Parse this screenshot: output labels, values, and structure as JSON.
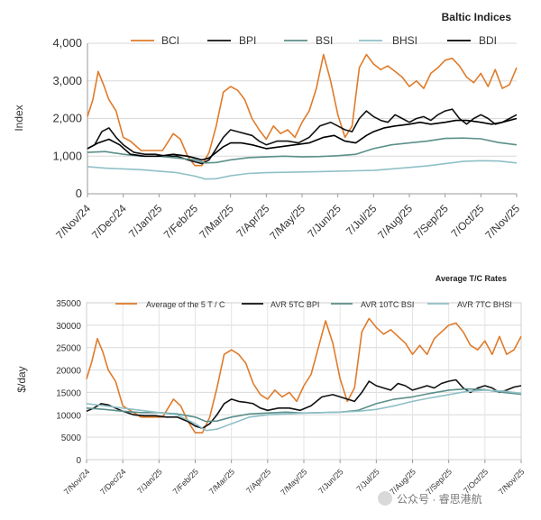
{
  "watermark": {
    "text": "公众号 · 睿思港航"
  },
  "chart_data": [
    {
      "type": "line",
      "title": "Baltic Indices",
      "xlabel": "",
      "ylabel": "Index",
      "ylim": [
        0,
        4000
      ],
      "yticks": [
        0,
        1000,
        2000,
        3000,
        4000
      ],
      "ytick_labels": [
        "0",
        "1,000",
        "2,000",
        "3,000",
        "4,000"
      ],
      "x_tick_labels": [
        "7/Nov/24",
        "7/Dec/24",
        "7/Jan/25",
        "7/Feb/25",
        "7/Mar/25",
        "7/Apr/25",
        "7/May/25",
        "7/Jun/25",
        "7/Jul/25",
        "7/Aug/25",
        "7/Sep/25",
        "7/Oct/25",
        "7/Nov/25"
      ],
      "legend_position": "top",
      "grid": true,
      "series": [
        {
          "name": "BCI",
          "color": "#e07b2a",
          "t": [
            0,
            0.15,
            0.3,
            0.45,
            0.6,
            0.8,
            1.0,
            1.2,
            1.5,
            1.8,
            2.1,
            2.4,
            2.6,
            2.8,
            3.0,
            3.2,
            3.4,
            3.6,
            3.8,
            4.0,
            4.2,
            4.4,
            4.6,
            4.8,
            5.0,
            5.2,
            5.4,
            5.6,
            5.8,
            6.0,
            6.2,
            6.4,
            6.6,
            6.8,
            7.0,
            7.2,
            7.4,
            7.6,
            7.8,
            8.0,
            8.2,
            8.4,
            8.6,
            8.8,
            9.0,
            9.2,
            9.4,
            9.6,
            9.8,
            10.0,
            10.2,
            10.4,
            10.6,
            10.8,
            11.0,
            11.2,
            11.4,
            11.6,
            11.8,
            12.0
          ],
          "values": [
            2050,
            2500,
            3250,
            2900,
            2500,
            2200,
            1500,
            1400,
            1150,
            1150,
            1150,
            1600,
            1450,
            1000,
            750,
            750,
            1100,
            1800,
            2700,
            2850,
            2750,
            2500,
            2000,
            1700,
            1450,
            1800,
            1600,
            1700,
            1500,
            1900,
            2200,
            2800,
            3700,
            3000,
            2100,
            1500,
            1800,
            3350,
            3700,
            3450,
            3300,
            3400,
            3250,
            3100,
            2850,
            3000,
            2800,
            3200,
            3350,
            3550,
            3600,
            3400,
            3100,
            2950,
            3200,
            2850,
            3300,
            2800,
            2900,
            3350
          ]
        },
        {
          "name": "BPI",
          "color": "#111111",
          "t": [
            0,
            0.2,
            0.4,
            0.6,
            0.8,
            1.0,
            1.3,
            1.6,
            1.9,
            2.2,
            2.5,
            2.8,
            3.0,
            3.2,
            3.4,
            3.6,
            3.8,
            4.0,
            4.2,
            4.4,
            4.6,
            4.8,
            5.0,
            5.3,
            5.6,
            5.9,
            6.2,
            6.5,
            6.8,
            7.0,
            7.2,
            7.4,
            7.6,
            7.8,
            8.0,
            8.2,
            8.4,
            8.6,
            8.8,
            9.0,
            9.2,
            9.4,
            9.6,
            9.8,
            10.0,
            10.2,
            10.4,
            10.6,
            10.8,
            11.0,
            11.2,
            11.4,
            11.6,
            11.8,
            12.0
          ],
          "values": [
            1200,
            1300,
            1650,
            1750,
            1500,
            1300,
            1100,
            1050,
            1050,
            1000,
            1000,
            900,
            850,
            800,
            900,
            1200,
            1500,
            1700,
            1650,
            1600,
            1550,
            1400,
            1300,
            1400,
            1400,
            1350,
            1500,
            1800,
            1900,
            1800,
            1700,
            1650,
            2000,
            2200,
            2050,
            1950,
            1900,
            2100,
            2000,
            1900,
            2000,
            2050,
            1950,
            2100,
            2200,
            2250,
            2000,
            1850,
            2000,
            2100,
            2000,
            1850,
            1900,
            2000,
            2100
          ]
        },
        {
          "name": "BSI",
          "color": "#5b8f8a",
          "t": [
            0,
            0.5,
            1,
            1.5,
            2,
            2.5,
            3,
            3.3,
            3.6,
            4,
            4.5,
            5,
            5.5,
            6,
            6.5,
            7,
            7.5,
            8,
            8.5,
            9,
            9.5,
            10,
            10.5,
            11,
            11.5,
            12
          ],
          "values": [
            1100,
            1120,
            1050,
            1000,
            1000,
            950,
            900,
            820,
            830,
            900,
            960,
            980,
            1000,
            980,
            990,
            1010,
            1050,
            1200,
            1300,
            1350,
            1400,
            1470,
            1480,
            1460,
            1360,
            1300
          ]
        },
        {
          "name": "BHSI",
          "color": "#8fc0c7",
          "t": [
            0,
            0.5,
            1,
            1.5,
            2,
            2.5,
            3,
            3.3,
            3.6,
            4,
            4.5,
            5,
            5.5,
            6,
            6.5,
            7,
            7.5,
            8,
            8.5,
            9,
            9.5,
            10,
            10.5,
            11,
            11.5,
            12
          ],
          "values": [
            720,
            680,
            660,
            640,
            600,
            560,
            470,
            390,
            400,
            480,
            540,
            560,
            570,
            580,
            590,
            600,
            610,
            620,
            660,
            700,
            740,
            800,
            860,
            880,
            870,
            820
          ]
        },
        {
          "name": "BDI",
          "color": "#000000",
          "t": [
            0,
            0.3,
            0.6,
            0.9,
            1.2,
            1.6,
            2.0,
            2.4,
            2.8,
            3.0,
            3.2,
            3.4,
            3.6,
            3.8,
            4.0,
            4.3,
            4.6,
            5.0,
            5.4,
            5.8,
            6.2,
            6.6,
            6.9,
            7.2,
            7.5,
            7.8,
            8.0,
            8.3,
            8.6,
            9.0,
            9.3,
            9.6,
            10.0,
            10.3,
            10.6,
            11.0,
            11.3,
            11.6,
            12.0
          ],
          "values": [
            1200,
            1350,
            1450,
            1300,
            1050,
            1000,
            1000,
            1050,
            1000,
            950,
            900,
            950,
            1100,
            1250,
            1350,
            1350,
            1300,
            1200,
            1250,
            1300,
            1350,
            1500,
            1550,
            1400,
            1350,
            1550,
            1650,
            1750,
            1800,
            1850,
            1900,
            1850,
            1900,
            1950,
            1950,
            1900,
            1850,
            1900,
            2000
          ]
        }
      ]
    },
    {
      "type": "line",
      "title": "Average T/C Rates",
      "xlabel": "",
      "ylabel": "$/day",
      "ylim": [
        0,
        35000
      ],
      "yticks": [
        0,
        5000,
        10000,
        15000,
        20000,
        25000,
        30000,
        35000
      ],
      "ytick_labels": [
        "0",
        "5000",
        "10000",
        "15000",
        "20000",
        "25000",
        "30000",
        "35000"
      ],
      "x_tick_labels": [
        "7/Nov/24",
        "7/Dec/24",
        "7/Jan/25",
        "7/Feb/25",
        "7/Mar/25",
        "7/Apr/25",
        "7/May/25",
        "7/Jun/25",
        "7/Jul/25",
        "7/Aug/25",
        "7/Sep/25",
        "7/Oct/25",
        "7/Nov/25"
      ],
      "legend_position": "top",
      "grid": true,
      "series": [
        {
          "name": "Average of the 5 T / C",
          "color": "#e07b2a",
          "t": [
            0,
            0.15,
            0.3,
            0.45,
            0.6,
            0.8,
            1.0,
            1.2,
            1.5,
            1.8,
            2.1,
            2.4,
            2.6,
            2.8,
            3.0,
            3.2,
            3.4,
            3.6,
            3.8,
            4.0,
            4.2,
            4.4,
            4.6,
            4.8,
            5.0,
            5.2,
            5.4,
            5.6,
            5.8,
            6.0,
            6.2,
            6.4,
            6.6,
            6.8,
            7.0,
            7.2,
            7.4,
            7.6,
            7.8,
            8.0,
            8.2,
            8.4,
            8.6,
            8.8,
            9.0,
            9.2,
            9.4,
            9.6,
            9.8,
            10.0,
            10.2,
            10.4,
            10.6,
            10.8,
            11.0,
            11.2,
            11.4,
            11.6,
            11.8,
            12.0
          ],
          "values": [
            18000,
            22000,
            27000,
            24000,
            20000,
            17500,
            12000,
            11000,
            9500,
            9500,
            9500,
            13500,
            12000,
            8500,
            6000,
            6000,
            9500,
            16000,
            23500,
            24500,
            23500,
            21500,
            17000,
            14500,
            13500,
            15500,
            14000,
            15000,
            13000,
            16500,
            19000,
            25000,
            31000,
            26000,
            18000,
            13000,
            16000,
            28500,
            31500,
            29500,
            28000,
            29000,
            27500,
            26000,
            23500,
            25500,
            23500,
            27000,
            28500,
            30000,
            30500,
            28500,
            25500,
            24500,
            26500,
            23500,
            27500,
            23500,
            24500,
            27500
          ]
        },
        {
          "name": "AVR 5TC BPI",
          "color": "#111111",
          "t": [
            0,
            0.2,
            0.4,
            0.6,
            0.8,
            1.0,
            1.3,
            1.6,
            1.9,
            2.2,
            2.5,
            2.8,
            3.0,
            3.2,
            3.4,
            3.6,
            3.8,
            4.0,
            4.2,
            4.4,
            4.6,
            4.8,
            5.0,
            5.3,
            5.6,
            5.9,
            6.2,
            6.5,
            6.8,
            7.0,
            7.2,
            7.4,
            7.6,
            7.8,
            8.0,
            8.2,
            8.4,
            8.6,
            8.8,
            9.0,
            9.2,
            9.4,
            9.6,
            9.8,
            10.0,
            10.2,
            10.4,
            10.6,
            10.8,
            11.0,
            11.2,
            11.4,
            11.6,
            11.8,
            12.0
          ],
          "values": [
            10800,
            11500,
            12500,
            12200,
            11500,
            10800,
            10000,
            9800,
            9800,
            9500,
            9500,
            8500,
            7500,
            7000,
            8000,
            10000,
            12500,
            13500,
            13000,
            12800,
            12500,
            11500,
            11000,
            11500,
            11500,
            11000,
            12000,
            14000,
            14500,
            14000,
            13500,
            13000,
            15000,
            17500,
            16500,
            16000,
            15500,
            17000,
            16500,
            15500,
            16000,
            16500,
            16000,
            17000,
            17500,
            17800,
            16000,
            15000,
            16000,
            16500,
            16000,
            15000,
            15500,
            16200,
            16500
          ]
        },
        {
          "name": "AVR 10TC BSI",
          "color": "#5b8f8a",
          "t": [
            0,
            0.5,
            1,
            1.5,
            2,
            2.5,
            3,
            3.3,
            3.6,
            4,
            4.5,
            5,
            5.5,
            6,
            6.5,
            7,
            7.5,
            8,
            8.5,
            9,
            9.5,
            10,
            10.5,
            11,
            11.5,
            12
          ],
          "values": [
            11500,
            11200,
            10800,
            10500,
            10500,
            10200,
            9500,
            8500,
            8600,
            9500,
            10200,
            10400,
            10600,
            10400,
            10500,
            10600,
            11000,
            12500,
            13500,
            14000,
            14800,
            15500,
            15800,
            15600,
            15000,
            14600
          ]
        },
        {
          "name": "AVR 7TC BHSI",
          "color": "#8fc0c7",
          "t": [
            0,
            0.5,
            1,
            1.5,
            2,
            2.5,
            3,
            3.3,
            3.6,
            4,
            4.5,
            5,
            5.5,
            6,
            6.5,
            7,
            7.5,
            8,
            8.5,
            9,
            9.5,
            10,
            10.5,
            11,
            11.5,
            12
          ],
          "values": [
            12500,
            12000,
            11500,
            11000,
            10500,
            10000,
            8000,
            6500,
            6800,
            8000,
            9500,
            10000,
            10200,
            10400,
            10500,
            10600,
            10800,
            11200,
            12000,
            13000,
            13800,
            14500,
            15200,
            15500,
            15300,
            14800
          ]
        }
      ]
    }
  ]
}
